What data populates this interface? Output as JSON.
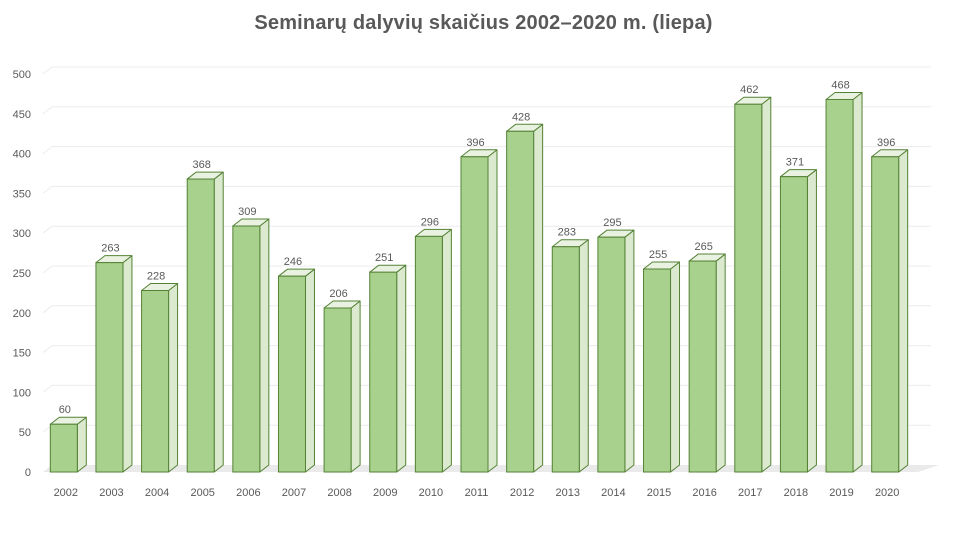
{
  "chart_data": {
    "type": "bar",
    "title": "Seminarų dalyvių skaičius 2002–2020 m. (liepa)",
    "xlabel": "",
    "ylabel": "",
    "categories": [
      "2002",
      "2003",
      "2004",
      "2005",
      "2006",
      "2007",
      "2008",
      "2009",
      "2010",
      "2011",
      "2012",
      "2013",
      "2014",
      "2015",
      "2016",
      "2017",
      "2018",
      "2019",
      "2020"
    ],
    "values": [
      60,
      263,
      228,
      368,
      309,
      246,
      206,
      251,
      296,
      396,
      428,
      283,
      295,
      255,
      265,
      462,
      371,
      468,
      396
    ],
    "ylim": [
      0,
      500
    ],
    "yticks": [
      0,
      50,
      100,
      150,
      200,
      250,
      300,
      350,
      400,
      450,
      500
    ],
    "grid": true,
    "legend": "none",
    "style": "3d-bar",
    "colors": {
      "bar_front": "#a9d18e",
      "bar_side": "#dbe9cf",
      "bar_top": "#e9f2e1",
      "bar_edge": "#548235",
      "grid": "#ececec",
      "floor": "#d9d9d9",
      "text": "#595959"
    }
  }
}
